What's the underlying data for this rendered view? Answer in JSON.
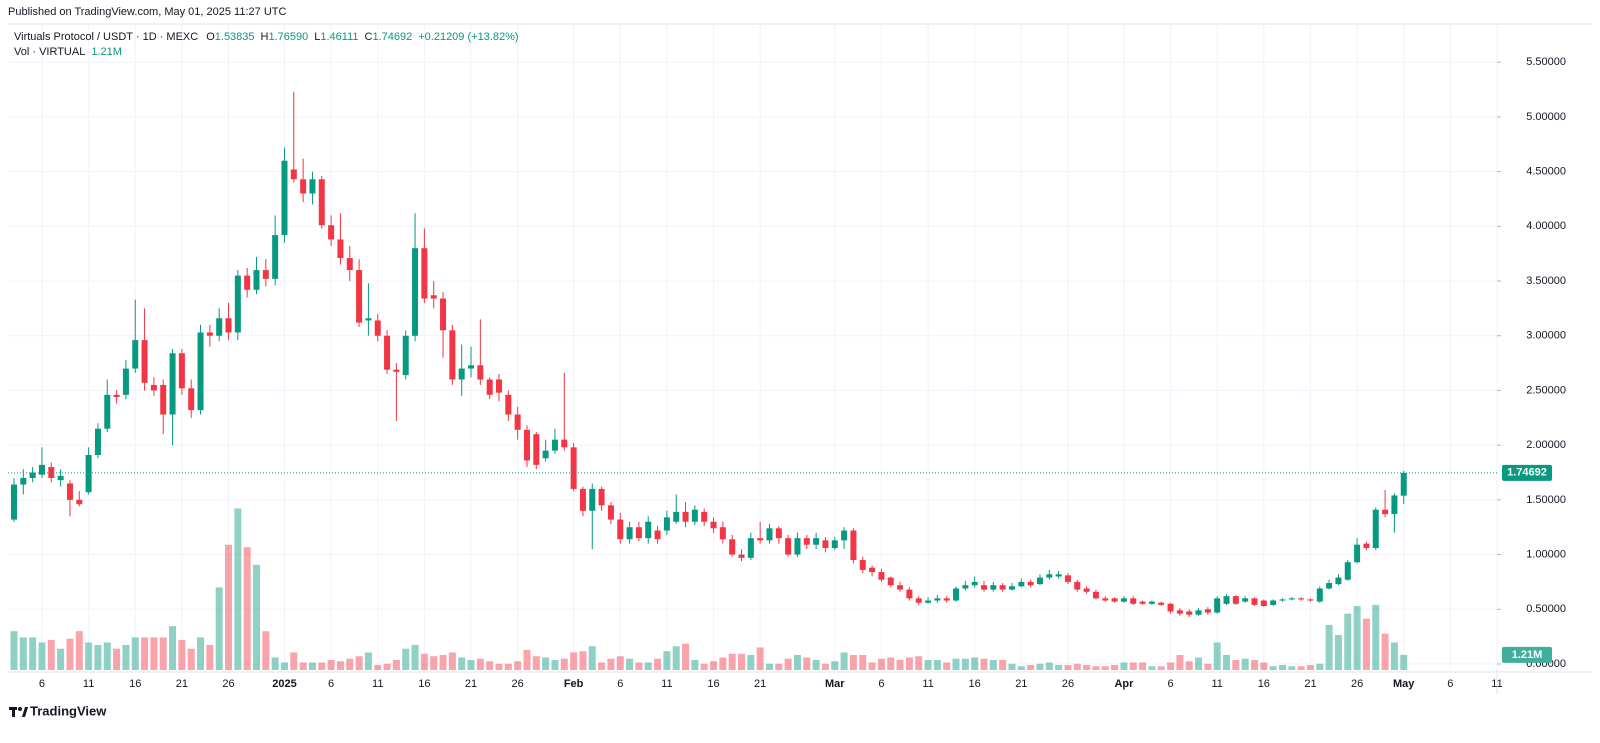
{
  "header": {
    "published": "Published on TradingView.com, May 01, 2025 11:27 UTC"
  },
  "chart_data": {
    "type": "candlestick",
    "title": "Virtuals Protocol / USDT · 1D · MEXC",
    "ohlc_legend": [
      {
        "key": "O",
        "label": "1.53835"
      },
      {
        "key": "H",
        "label": "1.76590"
      },
      {
        "key": "L",
        "label": "1.46111"
      },
      {
        "key": "C",
        "label": "1.74692"
      }
    ],
    "change": "+0.21209 (+13.82%)",
    "up_color": "#089981",
    "down_color": "#f23645",
    "open": [
      1.32,
      1.64,
      1.7,
      1.73,
      1.8,
      1.68,
      1.65,
      1.5,
      1.57,
      1.91,
      2.15,
      2.46,
      2.46,
      2.7,
      2.96,
      2.55,
      2.55,
      2.28,
      2.84,
      2.52,
      2.32,
      3.03,
      3.0,
      3.16,
      3.03,
      3.55,
      3.42,
      3.6,
      3.52,
      3.92,
      4.52,
      4.43,
      4.3,
      4.43,
      4.01,
      3.88,
      3.71,
      3.6,
      3.14,
      3.14,
      3.0,
      2.69,
      2.64,
      3.0,
      3.8,
      3.37,
      3.34,
      3.05,
      2.6,
      2.7,
      2.73,
      2.6,
      2.6,
      2.46,
      2.28,
      2.14,
      2.1,
      1.88,
      1.95,
      2.05,
      1.98,
      1.6,
      1.4,
      1.6,
      1.45,
      1.32,
      1.14,
      1.25,
      1.15,
      1.22,
      1.22,
      1.3,
      1.39,
      1.3,
      1.39,
      1.3,
      1.25,
      1.14,
      1.0,
      0.97,
      1.15,
      1.13,
      1.24,
      1.15,
      1.0,
      1.15,
      1.09,
      1.13,
      1.06,
      1.13,
      1.22,
      0.95,
      0.88,
      0.84,
      0.79,
      0.72,
      0.68,
      0.6,
      0.56,
      0.58,
      0.6,
      0.58,
      0.69,
      0.72,
      0.72,
      0.68,
      0.72,
      0.68,
      0.71,
      0.75,
      0.73,
      0.79,
      0.8,
      0.81,
      0.75,
      0.69,
      0.66,
      0.6,
      0.6,
      0.57,
      0.6,
      0.57,
      0.55,
      0.56,
      0.55,
      0.49,
      0.48,
      0.45,
      0.5,
      0.47,
      0.55,
      0.62,
      0.57,
      0.6,
      0.58,
      0.54,
      0.58,
      0.59,
      0.6,
      0.59,
      0.57,
      0.69,
      0.73,
      0.77,
      0.93,
      1.1,
      1.06,
      1.41,
      1.37,
      1.53835
    ],
    "high": [
      1.7,
      1.78,
      1.8,
      1.98,
      1.84,
      1.78,
      1.68,
      1.58,
      1.98,
      2.2,
      2.6,
      2.5,
      2.78,
      3.33,
      3.25,
      2.62,
      2.6,
      2.88,
      2.88,
      2.6,
      3.1,
      3.1,
      3.25,
      3.3,
      3.6,
      3.62,
      3.72,
      3.7,
      4.1,
      4.72,
      5.23,
      4.62,
      4.5,
      4.46,
      4.1,
      4.12,
      3.82,
      3.7,
      3.48,
      3.2,
      3.05,
      2.75,
      3.05,
      4.12,
      3.98,
      3.5,
      3.4,
      3.1,
      2.92,
      2.9,
      3.15,
      2.62,
      2.65,
      2.5,
      2.35,
      2.18,
      2.12,
      2.05,
      2.15,
      2.66,
      2.02,
      1.62,
      1.65,
      1.62,
      1.48,
      1.38,
      1.3,
      1.3,
      1.35,
      1.26,
      1.4,
      1.55,
      1.48,
      1.45,
      1.42,
      1.34,
      1.3,
      1.18,
      1.05,
      1.2,
      1.3,
      1.28,
      1.26,
      1.18,
      1.2,
      1.18,
      1.2,
      1.16,
      1.16,
      1.25,
      1.24,
      0.98,
      0.9,
      0.87,
      0.8,
      0.75,
      0.7,
      0.62,
      0.61,
      0.63,
      0.62,
      0.71,
      0.76,
      0.8,
      0.76,
      0.75,
      0.74,
      0.74,
      0.78,
      0.77,
      0.82,
      0.86,
      0.85,
      0.83,
      0.77,
      0.71,
      0.68,
      0.62,
      0.61,
      0.62,
      0.62,
      0.58,
      0.58,
      0.57,
      0.56,
      0.51,
      0.5,
      0.51,
      0.52,
      0.62,
      0.64,
      0.63,
      0.62,
      0.61,
      0.59,
      0.59,
      0.6,
      0.61,
      0.61,
      0.6,
      0.71,
      0.77,
      0.82,
      0.95,
      1.15,
      1.12,
      1.43,
      1.59,
      1.56,
      1.7659
    ],
    "low": [
      1.3,
      1.55,
      1.66,
      1.7,
      1.66,
      1.62,
      1.35,
      1.44,
      1.55,
      1.88,
      2.12,
      2.38,
      2.42,
      2.66,
      2.5,
      2.45,
      2.1,
      2.0,
      2.46,
      2.25,
      2.28,
      2.9,
      2.95,
      2.96,
      2.96,
      3.35,
      3.38,
      3.45,
      3.46,
      3.85,
      4.4,
      4.22,
      4.2,
      3.98,
      3.82,
      3.65,
      3.5,
      3.08,
      3.0,
      2.95,
      2.65,
      2.22,
      2.6,
      2.95,
      3.3,
      3.25,
      2.8,
      2.55,
      2.45,
      2.62,
      2.55,
      2.42,
      2.4,
      2.22,
      2.05,
      1.8,
      1.78,
      1.85,
      1.92,
      1.95,
      1.58,
      1.35,
      1.05,
      1.4,
      1.28,
      1.1,
      1.1,
      1.12,
      1.1,
      1.1,
      1.18,
      1.28,
      1.25,
      1.27,
      1.26,
      1.2,
      1.1,
      0.98,
      0.94,
      0.95,
      1.1,
      1.1,
      1.1,
      0.98,
      0.98,
      1.05,
      1.05,
      1.02,
      1.04,
      1.05,
      0.92,
      0.83,
      0.8,
      0.75,
      0.7,
      0.66,
      0.58,
      0.54,
      0.55,
      0.56,
      0.56,
      0.57,
      0.67,
      0.7,
      0.66,
      0.66,
      0.66,
      0.67,
      0.7,
      0.7,
      0.72,
      0.77,
      0.78,
      0.73,
      0.66,
      0.64,
      0.59,
      0.57,
      0.56,
      0.56,
      0.54,
      0.54,
      0.54,
      0.53,
      0.46,
      0.44,
      0.43,
      0.44,
      0.45,
      0.46,
      0.54,
      0.54,
      0.56,
      0.53,
      0.52,
      0.53,
      0.57,
      0.58,
      0.58,
      0.57,
      0.56,
      0.68,
      0.72,
      0.76,
      0.92,
      1.04,
      1.04,
      1.34,
      1.2,
      1.46111
    ],
    "close": [
      1.64,
      1.7,
      1.75,
      1.82,
      1.7,
      1.72,
      1.5,
      1.46,
      1.91,
      2.15,
      2.46,
      2.44,
      2.7,
      2.96,
      2.57,
      2.5,
      2.28,
      2.84,
      2.52,
      2.32,
      3.03,
      3.0,
      3.16,
      3.03,
      3.55,
      3.42,
      3.6,
      3.52,
      3.92,
      4.6,
      4.43,
      4.3,
      4.43,
      4.01,
      3.88,
      3.71,
      3.6,
      3.12,
      3.16,
      3.0,
      2.69,
      2.67,
      3.0,
      3.8,
      3.34,
      3.34,
      3.05,
      2.6,
      2.7,
      2.73,
      2.6,
      2.46,
      2.48,
      2.28,
      2.14,
      1.86,
      1.82,
      1.95,
      2.05,
      1.98,
      1.6,
      1.4,
      1.6,
      1.45,
      1.32,
      1.14,
      1.25,
      1.15,
      1.3,
      1.14,
      1.34,
      1.39,
      1.3,
      1.41,
      1.3,
      1.24,
      1.14,
      1.0,
      0.97,
      1.15,
      1.13,
      1.24,
      1.15,
      1.0,
      1.15,
      1.09,
      1.15,
      1.06,
      1.13,
      1.22,
      0.95,
      0.86,
      0.84,
      0.77,
      0.72,
      0.68,
      0.6,
      0.56,
      0.58,
      0.6,
      0.58,
      0.69,
      0.72,
      0.75,
      0.68,
      0.72,
      0.68,
      0.71,
      0.75,
      0.72,
      0.79,
      0.82,
      0.82,
      0.75,
      0.68,
      0.66,
      0.6,
      0.58,
      0.57,
      0.6,
      0.55,
      0.55,
      0.57,
      0.54,
      0.48,
      0.46,
      0.45,
      0.49,
      0.47,
      0.6,
      0.62,
      0.55,
      0.6,
      0.54,
      0.53,
      0.58,
      0.59,
      0.6,
      0.59,
      0.58,
      0.69,
      0.74,
      0.79,
      0.93,
      1.09,
      1.06,
      1.41,
      1.37,
      1.54,
      1.74692
    ],
    "volume": {
      "name": "Vol · VIRTUAL",
      "last_label": "1.21M",
      "up_color": "rgba(8,153,129,0.45)",
      "down_color": "rgba(242,54,69,0.45)",
      "values": [
        3.1,
        2.6,
        2.6,
        2.2,
        2.4,
        1.7,
        2.5,
        3.1,
        2.2,
        2.0,
        2.2,
        1.7,
        2.0,
        2.6,
        2.6,
        2.6,
        2.6,
        3.5,
        2.4,
        1.7,
        2.6,
        2.0,
        6.6,
        10.0,
        12.9,
        9.8,
        8.4,
        3.1,
        1.0,
        0.6,
        1.4,
        0.6,
        0.6,
        0.6,
        0.8,
        0.7,
        0.9,
        1.1,
        1.4,
        0.4,
        0.5,
        0.8,
        1.7,
        2.0,
        1.3,
        1.1,
        1.2,
        1.4,
        1.0,
        0.8,
        0.9,
        0.7,
        0.5,
        0.5,
        0.7,
        1.6,
        1.1,
        1.0,
        0.8,
        0.9,
        1.4,
        1.5,
        1.9,
        0.6,
        0.9,
        1.1,
        0.9,
        0.6,
        0.6,
        0.9,
        1.5,
        1.9,
        2.1,
        0.8,
        0.5,
        0.7,
        1.0,
        1.3,
        1.3,
        1.2,
        1.8,
        0.5,
        0.5,
        0.9,
        1.2,
        1.0,
        0.8,
        0.5,
        0.7,
        1.4,
        1.2,
        1.2,
        0.6,
        0.9,
        1.0,
        0.8,
        1.0,
        1.1,
        0.8,
        0.8,
        0.6,
        0.9,
        0.9,
        1.0,
        0.9,
        0.8,
        0.8,
        0.5,
        0.3,
        0.4,
        0.5,
        0.6,
        0.4,
        0.4,
        0.5,
        0.4,
        0.3,
        0.3,
        0.4,
        0.6,
        0.6,
        0.6,
        0.3,
        0.3,
        0.6,
        1.2,
        0.7,
        1.0,
        0.5,
        2.2,
        1.2,
        0.8,
        0.9,
        0.8,
        0.6,
        0.3,
        0.4,
        0.3,
        0.3,
        0.4,
        0.5,
        3.6,
        2.8,
        4.5,
        5.1,
        4.1,
        5.2,
        2.9,
        2.2,
        1.21
      ]
    },
    "xlim": [
      -1.5,
      159
    ],
    "xticks": [
      {
        "value": 3,
        "label": "6"
      },
      {
        "value": 8,
        "label": "11"
      },
      {
        "value": 13,
        "label": "16"
      },
      {
        "value": 18,
        "label": "21"
      },
      {
        "value": 23,
        "label": "26"
      },
      {
        "value": 29,
        "label": "2025"
      },
      {
        "value": 34,
        "label": "6"
      },
      {
        "value": 39,
        "label": "11"
      },
      {
        "value": 44,
        "label": "16"
      },
      {
        "value": 49,
        "label": "21"
      },
      {
        "value": 54,
        "label": "26"
      },
      {
        "value": 60,
        "label": "Feb"
      },
      {
        "value": 65,
        "label": "6"
      },
      {
        "value": 70,
        "label": "11"
      },
      {
        "value": 75,
        "label": "16"
      },
      {
        "value": 80,
        "label": "21"
      },
      {
        "value": 88,
        "label": "Mar"
      },
      {
        "value": 93,
        "label": "6"
      },
      {
        "value": 98,
        "label": "11"
      },
      {
        "value": 103,
        "label": "16"
      },
      {
        "value": 108,
        "label": "21"
      },
      {
        "value": 113,
        "label": "26"
      },
      {
        "value": 119,
        "label": "Apr"
      },
      {
        "value": 124,
        "label": "6"
      },
      {
        "value": 129,
        "label": "11"
      },
      {
        "value": 134,
        "label": "16"
      },
      {
        "value": 139,
        "label": "21"
      },
      {
        "value": 144,
        "label": "26"
      },
      {
        "value": 149,
        "label": "May"
      },
      {
        "value": 154,
        "label": "6"
      },
      {
        "value": 159,
        "label": "11"
      }
    ],
    "ylim": [
      -0.055,
      5.84
    ],
    "yticks": [
      {
        "value": 0,
        "label": "0.00000"
      },
      {
        "value": 0.5,
        "label": "0.50000"
      },
      {
        "value": 1,
        "label": "1.00000"
      },
      {
        "value": 1.5,
        "label": "1.50000"
      },
      {
        "value": 2,
        "label": "2.00000"
      },
      {
        "value": 2.5,
        "label": "2.50000"
      },
      {
        "value": 3,
        "label": "3.00000"
      },
      {
        "value": 3.5,
        "label": "3.50000"
      },
      {
        "value": 4,
        "label": "4.00000"
      },
      {
        "value": 4.5,
        "label": "4.50000"
      },
      {
        "value": 5,
        "label": "5.00000"
      },
      {
        "value": 5.5,
        "label": "5.50000"
      }
    ],
    "y2lim": [
      0,
      51.5
    ],
    "grid": true
  },
  "footer": {
    "brand": "TradingView"
  }
}
